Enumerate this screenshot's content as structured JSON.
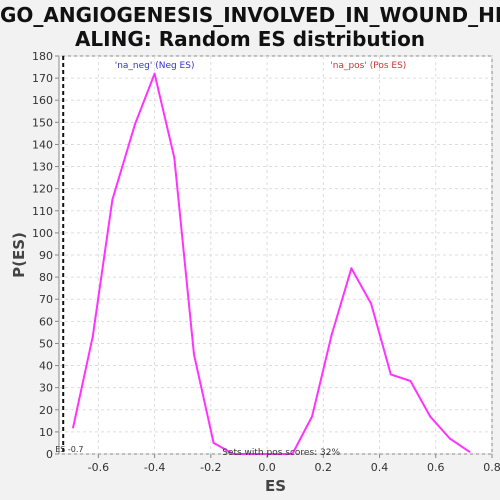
{
  "chart_data": {
    "type": "line",
    "title_lines": [
      "GO_ANGIOGENESIS_INVOLVED_IN_WOUND_HE",
      "ALING: Random ES distribution"
    ],
    "xlabel": "ES",
    "ylabel": "P(ES)",
    "xlim": [
      -0.74,
      0.8
    ],
    "ylim": [
      0,
      180
    ],
    "xticks": [
      -0.6,
      -0.4,
      -0.2,
      0.0,
      0.2,
      0.4,
      0.6,
      0.8
    ],
    "xtick_labels": [
      "-0.6",
      "-0.4",
      "-0.2",
      "0.0",
      "0.2",
      "0.4",
      "0.6",
      "0.8"
    ],
    "yticks": [
      0,
      10,
      20,
      30,
      40,
      50,
      60,
      70,
      80,
      90,
      100,
      110,
      120,
      130,
      140,
      150,
      160,
      170,
      180
    ],
    "grid": true,
    "series": [
      {
        "color": "#ff33ff",
        "x": [
          -0.69,
          -0.62,
          -0.55,
          -0.47,
          -0.4,
          -0.33,
          -0.26,
          -0.19,
          -0.12,
          -0.05,
          0.02,
          0.09,
          0.16,
          0.23,
          0.3,
          0.37,
          0.44,
          0.51,
          0.58,
          0.65,
          0.72
        ],
        "y": [
          12,
          53,
          115,
          149,
          172,
          134,
          45,
          5,
          0,
          0,
          0,
          0,
          17,
          54,
          84,
          68,
          36,
          33,
          17,
          7,
          1
        ]
      }
    ],
    "annotations": [
      {
        "text": "'na_neg' (Neg ES)",
        "color": "#3333cc",
        "x": -0.4,
        "y": 176
      },
      {
        "text": "'na_pos' (Pos ES)",
        "color": "#cc3333",
        "x": 0.36,
        "y": 176
      },
      {
        "text": "Sets with pos scores: 32%",
        "color": "#333333",
        "x": 0.05,
        "y": 1
      }
    ],
    "vline": {
      "x": -0.725,
      "label": "ES -0.7"
    }
  }
}
